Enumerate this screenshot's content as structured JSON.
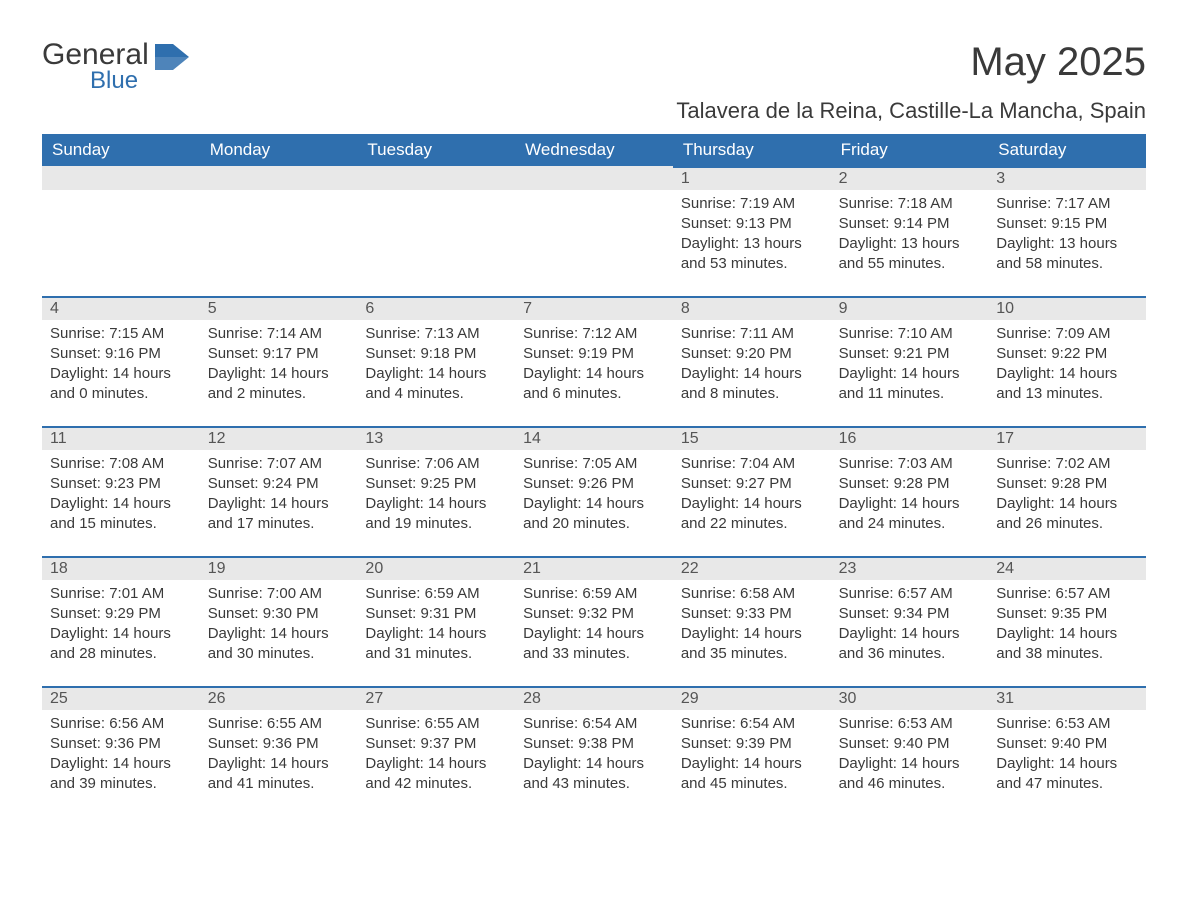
{
  "logo": {
    "word1": "General",
    "word2": "Blue"
  },
  "title": "May 2025",
  "subtitle": "Talavera de la Reina, Castille-La Mancha, Spain",
  "colors": {
    "header_bg": "#2f6fae",
    "header_text": "#ffffff",
    "daynum_bg": "#e8e8e8",
    "daynum_border": "#2f6fae",
    "body_text": "#3a3a3a",
    "page_bg": "#ffffff"
  },
  "typography": {
    "title_size_pt": 30,
    "subtitle_size_pt": 17,
    "dayhead_size_pt": 13,
    "body_size_pt": 11
  },
  "day_headers": [
    "Sunday",
    "Monday",
    "Tuesday",
    "Wednesday",
    "Thursday",
    "Friday",
    "Saturday"
  ],
  "labels": {
    "sunrise": "Sunrise:",
    "sunset": "Sunset:",
    "daylight": "Daylight:"
  },
  "weeks": [
    [
      {
        "blank": true
      },
      {
        "blank": true
      },
      {
        "blank": true
      },
      {
        "blank": true
      },
      {
        "day": "1",
        "sunrise": "7:19 AM",
        "sunset": "9:13 PM",
        "daylight": "13 hours and 53 minutes."
      },
      {
        "day": "2",
        "sunrise": "7:18 AM",
        "sunset": "9:14 PM",
        "daylight": "13 hours and 55 minutes."
      },
      {
        "day": "3",
        "sunrise": "7:17 AM",
        "sunset": "9:15 PM",
        "daylight": "13 hours and 58 minutes."
      }
    ],
    [
      {
        "day": "4",
        "sunrise": "7:15 AM",
        "sunset": "9:16 PM",
        "daylight": "14 hours and 0 minutes."
      },
      {
        "day": "5",
        "sunrise": "7:14 AM",
        "sunset": "9:17 PM",
        "daylight": "14 hours and 2 minutes."
      },
      {
        "day": "6",
        "sunrise": "7:13 AM",
        "sunset": "9:18 PM",
        "daylight": "14 hours and 4 minutes."
      },
      {
        "day": "7",
        "sunrise": "7:12 AM",
        "sunset": "9:19 PM",
        "daylight": "14 hours and 6 minutes."
      },
      {
        "day": "8",
        "sunrise": "7:11 AM",
        "sunset": "9:20 PM",
        "daylight": "14 hours and 8 minutes."
      },
      {
        "day": "9",
        "sunrise": "7:10 AM",
        "sunset": "9:21 PM",
        "daylight": "14 hours and 11 minutes."
      },
      {
        "day": "10",
        "sunrise": "7:09 AM",
        "sunset": "9:22 PM",
        "daylight": "14 hours and 13 minutes."
      }
    ],
    [
      {
        "day": "11",
        "sunrise": "7:08 AM",
        "sunset": "9:23 PM",
        "daylight": "14 hours and 15 minutes."
      },
      {
        "day": "12",
        "sunrise": "7:07 AM",
        "sunset": "9:24 PM",
        "daylight": "14 hours and 17 minutes."
      },
      {
        "day": "13",
        "sunrise": "7:06 AM",
        "sunset": "9:25 PM",
        "daylight": "14 hours and 19 minutes."
      },
      {
        "day": "14",
        "sunrise": "7:05 AM",
        "sunset": "9:26 PM",
        "daylight": "14 hours and 20 minutes."
      },
      {
        "day": "15",
        "sunrise": "7:04 AM",
        "sunset": "9:27 PM",
        "daylight": "14 hours and 22 minutes."
      },
      {
        "day": "16",
        "sunrise": "7:03 AM",
        "sunset": "9:28 PM",
        "daylight": "14 hours and 24 minutes."
      },
      {
        "day": "17",
        "sunrise": "7:02 AM",
        "sunset": "9:28 PM",
        "daylight": "14 hours and 26 minutes."
      }
    ],
    [
      {
        "day": "18",
        "sunrise": "7:01 AM",
        "sunset": "9:29 PM",
        "daylight": "14 hours and 28 minutes."
      },
      {
        "day": "19",
        "sunrise": "7:00 AM",
        "sunset": "9:30 PM",
        "daylight": "14 hours and 30 minutes."
      },
      {
        "day": "20",
        "sunrise": "6:59 AM",
        "sunset": "9:31 PM",
        "daylight": "14 hours and 31 minutes."
      },
      {
        "day": "21",
        "sunrise": "6:59 AM",
        "sunset": "9:32 PM",
        "daylight": "14 hours and 33 minutes."
      },
      {
        "day": "22",
        "sunrise": "6:58 AM",
        "sunset": "9:33 PM",
        "daylight": "14 hours and 35 minutes."
      },
      {
        "day": "23",
        "sunrise": "6:57 AM",
        "sunset": "9:34 PM",
        "daylight": "14 hours and 36 minutes."
      },
      {
        "day": "24",
        "sunrise": "6:57 AM",
        "sunset": "9:35 PM",
        "daylight": "14 hours and 38 minutes."
      }
    ],
    [
      {
        "day": "25",
        "sunrise": "6:56 AM",
        "sunset": "9:36 PM",
        "daylight": "14 hours and 39 minutes."
      },
      {
        "day": "26",
        "sunrise": "6:55 AM",
        "sunset": "9:36 PM",
        "daylight": "14 hours and 41 minutes."
      },
      {
        "day": "27",
        "sunrise": "6:55 AM",
        "sunset": "9:37 PM",
        "daylight": "14 hours and 42 minutes."
      },
      {
        "day": "28",
        "sunrise": "6:54 AM",
        "sunset": "9:38 PM",
        "daylight": "14 hours and 43 minutes."
      },
      {
        "day": "29",
        "sunrise": "6:54 AM",
        "sunset": "9:39 PM",
        "daylight": "14 hours and 45 minutes."
      },
      {
        "day": "30",
        "sunrise": "6:53 AM",
        "sunset": "9:40 PM",
        "daylight": "14 hours and 46 minutes."
      },
      {
        "day": "31",
        "sunrise": "6:53 AM",
        "sunset": "9:40 PM",
        "daylight": "14 hours and 47 minutes."
      }
    ]
  ]
}
